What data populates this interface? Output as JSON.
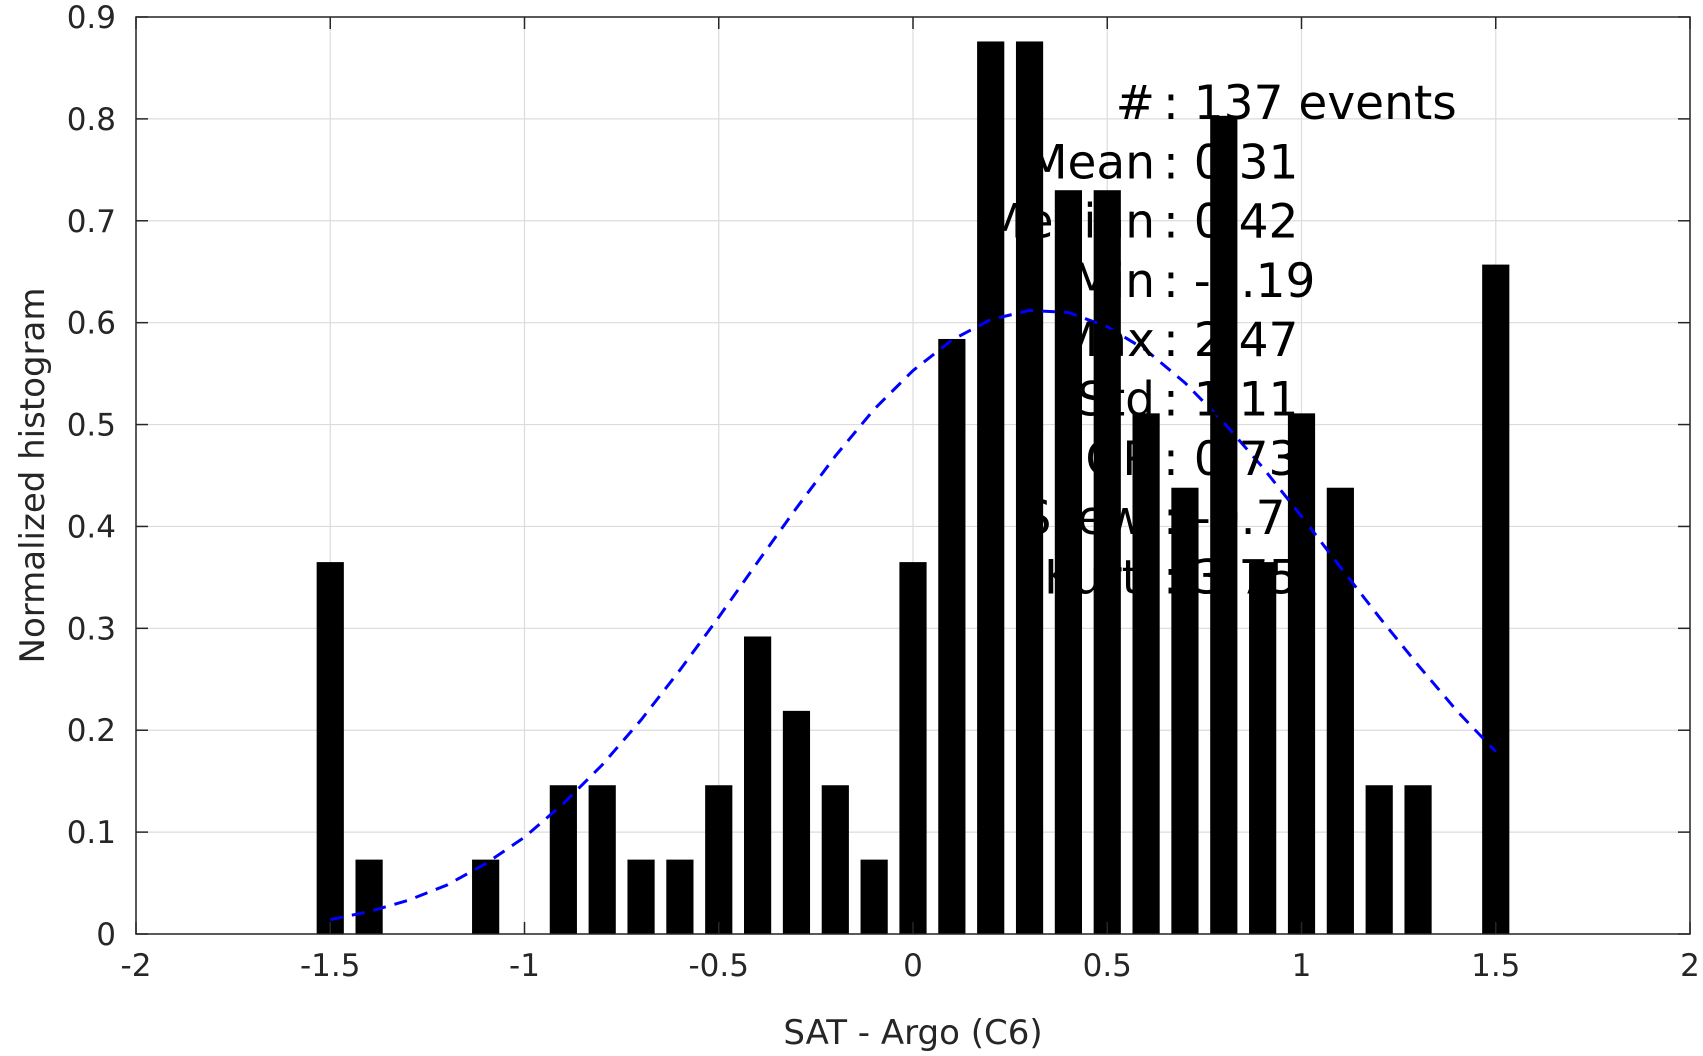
{
  "chart_data": {
    "type": "bar",
    "xlabel": "SAT - Argo (C6)",
    "ylabel": "Normalized histogram",
    "xlim": [
      -2,
      2
    ],
    "ylim": [
      0,
      0.9
    ],
    "x_ticks": [
      "-2",
      "-1.5",
      "-1",
      "-0.5",
      "0",
      "0.5",
      "1",
      "1.5",
      "2"
    ],
    "y_ticks": [
      "0",
      "0.1",
      "0.2",
      "0.3",
      "0.4",
      "0.5",
      "0.6",
      "0.7",
      "0.8",
      "0.9"
    ],
    "grid": true,
    "bar_width": 0.07,
    "bars": [
      {
        "x": -1.5,
        "y": 0.365
      },
      {
        "x": -1.4,
        "y": 0.073
      },
      {
        "x": -1.1,
        "y": 0.073
      },
      {
        "x": -0.9,
        "y": 0.146
      },
      {
        "x": -0.8,
        "y": 0.146
      },
      {
        "x": -0.7,
        "y": 0.073
      },
      {
        "x": -0.6,
        "y": 0.073
      },
      {
        "x": -0.5,
        "y": 0.146
      },
      {
        "x": -0.4,
        "y": 0.292
      },
      {
        "x": -0.3,
        "y": 0.219
      },
      {
        "x": -0.2,
        "y": 0.146
      },
      {
        "x": -0.1,
        "y": 0.073
      },
      {
        "x": 0.0,
        "y": 0.365
      },
      {
        "x": 0.1,
        "y": 0.584
      },
      {
        "x": 0.2,
        "y": 0.876
      },
      {
        "x": 0.3,
        "y": 0.876
      },
      {
        "x": 0.4,
        "y": 0.73
      },
      {
        "x": 0.5,
        "y": 0.73
      },
      {
        "x": 0.6,
        "y": 0.511
      },
      {
        "x": 0.7,
        "y": 0.438
      },
      {
        "x": 0.8,
        "y": 0.803
      },
      {
        "x": 0.9,
        "y": 0.365
      },
      {
        "x": 1.0,
        "y": 0.511
      },
      {
        "x": 1.1,
        "y": 0.438
      },
      {
        "x": 1.2,
        "y": 0.146
      },
      {
        "x": 1.3,
        "y": 0.146
      },
      {
        "x": 1.5,
        "y": 0.657
      }
    ],
    "fit_curve": {
      "style": "dashed",
      "color": "#0000ff",
      "x": [
        -1.5,
        -1.4,
        -1.3,
        -1.2,
        -1.1,
        -1.0,
        -0.9,
        -0.8,
        -0.7,
        -0.6,
        -0.5,
        -0.4,
        -0.3,
        -0.2,
        -0.1,
        0.0,
        0.1,
        0.2,
        0.3,
        0.4,
        0.5,
        0.6,
        0.7,
        0.8,
        0.9,
        1.0,
        1.1,
        1.2,
        1.3,
        1.4,
        1.5
      ],
      "y": [
        0.014,
        0.022,
        0.033,
        0.048,
        0.069,
        0.095,
        0.128,
        0.166,
        0.21,
        0.259,
        0.311,
        0.365,
        0.418,
        0.469,
        0.515,
        0.553,
        0.583,
        0.603,
        0.612,
        0.61,
        0.596,
        0.573,
        0.541,
        0.502,
        0.458,
        0.41,
        0.36,
        0.311,
        0.264,
        0.219,
        0.179
      ]
    },
    "colors": {
      "bars": "#000000",
      "curve": "#0000ff",
      "grid": "#dcdcdc",
      "axis": "#262626"
    },
    "stats": [
      {
        "label": "#  ",
        "value": "137 events"
      },
      {
        "label": "Mean ",
        "value": "0.31"
      },
      {
        "label": "Median ",
        "value": "0.42"
      },
      {
        "label": "Min ",
        "value": "-7.19"
      },
      {
        "label": "Max ",
        "value": "2.47"
      },
      {
        "label": "Std ",
        "value": "1.11"
      },
      {
        "label": "IQR ",
        "value": "0.73"
      },
      {
        "label": "Skew. ",
        "value": "-0.79"
      },
      {
        "label": "Kurt. ",
        "value": "3.75"
      }
    ]
  }
}
